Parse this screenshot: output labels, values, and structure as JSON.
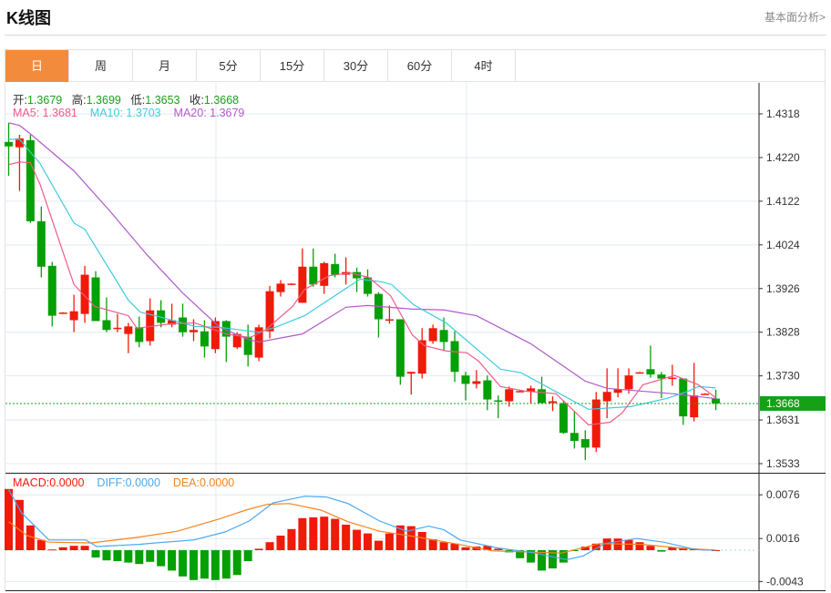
{
  "header": {
    "title": "K线图",
    "link": "基本面分析>"
  },
  "tabs": [
    {
      "label": "日",
      "active": true
    },
    {
      "label": "周"
    },
    {
      "label": "月"
    },
    {
      "label": "5分"
    },
    {
      "label": "15分"
    },
    {
      "label": "30分"
    },
    {
      "label": "60分"
    },
    {
      "label": "4时"
    }
  ],
  "ohlc_info": {
    "open_label": "开:",
    "open": "1.3679",
    "high_label": "高:",
    "high": "1.3699",
    "low_label": "低:",
    "low": "1.3653",
    "close_label": "收:",
    "close": "1.3668"
  },
  "ma_info": {
    "ma5": "MA5: 1.3681",
    "ma10": "MA10: 1.3703",
    "ma20": "MA20: 1.3679"
  },
  "macd_info": {
    "macd": "MACD:0.0000",
    "diff": "DIFF:0.0000",
    "dea": "DEA:0.0000"
  },
  "colors": {
    "up": "#F01A0A",
    "down": "#05A005",
    "ma5": "#EE5C8A",
    "ma10": "#3FCBE0",
    "ma20": "#B25AC9",
    "diff": "#4AA8F0",
    "dea": "#F5841F",
    "active_tab": "#F28C3C",
    "price_line": "#1aa01a"
  },
  "chart_data": {
    "type": "candlestick",
    "price_axis": {
      "ticks": [
        "1.4318",
        "1.4220",
        "1.4122",
        "1.4024",
        "1.3926",
        "1.3828",
        "1.3730",
        "1.3631",
        "1.3533"
      ],
      "range": [
        1.3533,
        1.4318
      ]
    },
    "current_price": "1.3668",
    "candles": [
      [
        1.4255,
        1.4245,
        1.4298,
        1.4179
      ],
      [
        1.4243,
        1.4263,
        1.4271,
        1.4145
      ],
      [
        1.4259,
        1.4077,
        1.4271,
        1.4073
      ],
      [
        1.4077,
        1.3975,
        1.411,
        1.3951
      ],
      [
        1.3977,
        1.3865,
        1.3986,
        1.3841
      ],
      [
        1.3871,
        1.3872,
        1.3873,
        1.387
      ],
      [
        1.3855,
        1.3875,
        1.3912,
        1.3828
      ],
      [
        1.3869,
        1.3957,
        1.3977,
        1.3849
      ],
      [
        1.3951,
        1.3853,
        1.3965,
        1.3853
      ],
      [
        1.3855,
        1.3833,
        1.3906,
        1.3828
      ],
      [
        1.3837,
        1.3838,
        1.3869,
        1.3828
      ],
      [
        1.3824,
        1.3841,
        1.3849,
        1.3781
      ],
      [
        1.3839,
        1.3806,
        1.3863,
        1.3794
      ],
      [
        1.3808,
        1.3877,
        1.3904,
        1.3798
      ],
      [
        1.3877,
        1.3849,
        1.39,
        1.3839
      ],
      [
        1.3845,
        1.3855,
        1.3892,
        1.3839
      ],
      [
        1.3861,
        1.3828,
        1.3892,
        1.3818
      ],
      [
        1.3828,
        1.3833,
        1.3857,
        1.3808
      ],
      [
        1.383,
        1.3796,
        1.3855,
        1.3771
      ],
      [
        1.379,
        1.3853,
        1.3861,
        1.3781
      ],
      [
        1.3853,
        1.3818,
        1.3855,
        1.3761
      ],
      [
        1.3794,
        1.3824,
        1.3828,
        1.379
      ],
      [
        1.3818,
        1.3777,
        1.3845,
        1.3751
      ],
      [
        1.3771,
        1.3839,
        1.3845,
        1.3763
      ],
      [
        1.383,
        1.392,
        1.3932,
        1.3814
      ],
      [
        1.3918,
        1.3937,
        1.3945,
        1.3908
      ],
      [
        1.3936,
        1.3937,
        1.3938,
        1.3936
      ],
      [
        1.3894,
        1.3975,
        1.4016,
        1.3894
      ],
      [
        1.3975,
        1.3935,
        1.4016,
        1.393
      ],
      [
        1.3932,
        1.3983,
        1.3986,
        1.3914
      ],
      [
        1.3981,
        1.3957,
        1.4004,
        1.3951
      ],
      [
        1.3957,
        1.3963,
        1.3996,
        1.3935
      ],
      [
        1.3963,
        1.3949,
        1.3973,
        1.3918
      ],
      [
        1.3951,
        1.3914,
        1.3969,
        1.3908
      ],
      [
        1.3914,
        1.3857,
        1.3918,
        1.3816
      ],
      [
        1.3856,
        1.3857,
        1.3888,
        1.3847
      ],
      [
        1.3857,
        1.3728,
        1.3857,
        1.371
      ],
      [
        1.3735,
        1.3739,
        1.3739,
        1.3688
      ],
      [
        1.3735,
        1.381,
        1.3837,
        1.3724
      ],
      [
        1.3808,
        1.3837,
        1.3845,
        1.3802
      ],
      [
        1.3833,
        1.3806,
        1.3861,
        1.3786
      ],
      [
        1.3808,
        1.3739,
        1.383,
        1.3716
      ],
      [
        1.3731,
        1.3712,
        1.3739,
        1.3675
      ],
      [
        1.3712,
        1.3718,
        1.3743,
        1.3702
      ],
      [
        1.372,
        1.3677,
        1.3731,
        1.3653
      ],
      [
        1.3675,
        1.3673,
        1.3686,
        1.3635
      ],
      [
        1.3673,
        1.37,
        1.3706,
        1.3661
      ],
      [
        1.3695,
        1.3696,
        1.3697,
        1.3694
      ],
      [
        1.3694,
        1.3702,
        1.3708,
        1.3669
      ],
      [
        1.37,
        1.3669,
        1.3728,
        1.3667
      ],
      [
        1.3669,
        1.3673,
        1.3684,
        1.3651
      ],
      [
        1.3669,
        1.3602,
        1.3675,
        1.36
      ],
      [
        1.3602,
        1.3584,
        1.3651,
        1.3567
      ],
      [
        1.3588,
        1.3569,
        1.3608,
        1.3541
      ],
      [
        1.3569,
        1.3677,
        1.3694,
        1.3559
      ],
      [
        1.3673,
        1.3694,
        1.3747,
        1.3635
      ],
      [
        1.3692,
        1.37,
        1.3747,
        1.3682
      ],
      [
        1.37,
        1.3731,
        1.3747,
        1.369
      ],
      [
        1.3737,
        1.3738,
        1.3739,
        1.3736
      ],
      [
        1.3745,
        1.3733,
        1.3798,
        1.3726
      ],
      [
        1.3733,
        1.3724,
        1.3739,
        1.368
      ],
      [
        1.3724,
        1.3726,
        1.3755,
        1.3708
      ],
      [
        1.3724,
        1.3639,
        1.3724,
        1.362
      ],
      [
        1.3637,
        1.3686,
        1.3759,
        1.3628
      ],
      [
        1.3689,
        1.369,
        1.3691,
        1.3688
      ],
      [
        1.3679,
        1.3668,
        1.3699,
        1.3653
      ]
    ],
    "ma5": [
      [
        0,
        1.4204
      ],
      [
        1,
        1.421
      ],
      [
        2,
        1.4208
      ],
      [
        2.9,
        1.4159
      ],
      [
        6,
        1.3935
      ],
      [
        7.9,
        1.3886
      ],
      [
        11,
        1.3865
      ],
      [
        11.8,
        1.3837
      ],
      [
        15,
        1.3847
      ],
      [
        17.1,
        1.3849
      ],
      [
        20,
        1.3824
      ],
      [
        22.2,
        1.3816
      ],
      [
        23.6,
        1.3833
      ],
      [
        26.1,
        1.3886
      ],
      [
        27.2,
        1.3924
      ],
      [
        29.5,
        1.3955
      ],
      [
        31.4,
        1.3961
      ],
      [
        33.1,
        1.3951
      ],
      [
        35.1,
        1.391
      ],
      [
        37.1,
        1.3822
      ],
      [
        38.2,
        1.3798
      ],
      [
        40.2,
        1.3786
      ],
      [
        42.1,
        1.3782
      ],
      [
        43.2,
        1.3763
      ],
      [
        45.2,
        1.3706
      ],
      [
        47.4,
        1.3696
      ],
      [
        50.3,
        1.369
      ],
      [
        53.3,
        1.362
      ],
      [
        55.3,
        1.3626
      ],
      [
        56.4,
        1.3647
      ],
      [
        58.3,
        1.371
      ],
      [
        61.2,
        1.3731
      ],
      [
        63.4,
        1.371
      ],
      [
        65,
        1.3681
      ]
    ],
    "ma10": [
      [
        0,
        1.4261
      ],
      [
        1,
        1.4261
      ],
      [
        2.9,
        1.4206
      ],
      [
        6,
        1.4073
      ],
      [
        7,
        1.4059
      ],
      [
        11,
        1.39
      ],
      [
        12.1,
        1.3873
      ],
      [
        13.8,
        1.3863
      ],
      [
        17.1,
        1.3841
      ],
      [
        19.4,
        1.3839
      ],
      [
        23,
        1.3828
      ],
      [
        24.5,
        1.3839
      ],
      [
        27.2,
        1.3865
      ],
      [
        32.3,
        1.3947
      ],
      [
        34.3,
        1.3941
      ],
      [
        35.2,
        1.3935
      ],
      [
        37.2,
        1.389
      ],
      [
        40.2,
        1.3849
      ],
      [
        45.2,
        1.3745
      ],
      [
        47.1,
        1.3737
      ],
      [
        53.3,
        1.3655
      ],
      [
        57.2,
        1.3661
      ],
      [
        60.6,
        1.368
      ],
      [
        62.5,
        1.3696
      ],
      [
        63.4,
        1.3706
      ],
      [
        65,
        1.3703
      ]
    ],
    "ma20": [
      [
        0,
        1.4298
      ],
      [
        1,
        1.4292
      ],
      [
        2,
        1.4273
      ],
      [
        6,
        1.419
      ],
      [
        9.3,
        1.41
      ],
      [
        12.7,
        1.4002
      ],
      [
        16,
        1.3916
      ],
      [
        19.4,
        1.3839
      ],
      [
        22,
        1.3812
      ],
      [
        23,
        1.3806
      ],
      [
        27,
        1.3824
      ],
      [
        31,
        1.3884
      ],
      [
        33,
        1.3888
      ],
      [
        37,
        1.388
      ],
      [
        40,
        1.3878
      ],
      [
        43,
        1.3865
      ],
      [
        48,
        1.3802
      ],
      [
        53,
        1.3718
      ],
      [
        55,
        1.3702
      ],
      [
        61,
        1.369
      ],
      [
        65,
        1.3679
      ]
    ],
    "macd": {
      "ticks": [
        "0.0076",
        "0.0016",
        "-0.0043"
      ],
      "histogram": [
        0.0084,
        0.0069,
        0.0034,
        0.0014,
        0.0001,
        0.0004,
        0.0006,
        0.0006,
        -0.001,
        -0.0014,
        -0.0015,
        -0.0017,
        -0.0019,
        -0.0016,
        -0.0022,
        -0.0028,
        -0.0036,
        -0.0041,
        -0.0039,
        -0.0041,
        -0.0039,
        -0.0034,
        -0.0015,
        0.0002,
        0.0011,
        0.002,
        0.0029,
        0.0044,
        0.0045,
        0.0046,
        0.0043,
        0.0035,
        0.0028,
        0.0023,
        0.0013,
        0.0023,
        0.0034,
        0.0033,
        0.0025,
        0.0015,
        0.0011,
        0.0009,
        0.0004,
        0.0005,
        0.0006,
        0.0002,
        -0.0003,
        -0.0011,
        -0.0017,
        -0.0028,
        -0.0025,
        -0.0017,
        -0.0001,
        0.0005,
        0.0009,
        0.0016,
        0.0016,
        0.0014,
        0.0011,
        0.0006,
        -0.0002,
        0.0004,
        0.0003,
        0.0002,
        0.0001,
        0.0
      ],
      "diff": [
        [
          0,
          0.0083
        ],
        [
          1.2,
          0.0051
        ],
        [
          3.7,
          0.0014
        ],
        [
          7.1,
          0.0014
        ],
        [
          8.1,
          0.0005
        ],
        [
          12,
          0.0008
        ],
        [
          13.5,
          0.001
        ],
        [
          17,
          0.0014
        ],
        [
          19.9,
          0.0025
        ],
        [
          22.1,
          0.004
        ],
        [
          24.3,
          0.0065
        ],
        [
          27.2,
          0.0074
        ],
        [
          29.2,
          0.0073
        ],
        [
          31.2,
          0.0064
        ],
        [
          34.1,
          0.004
        ],
        [
          36.6,
          0.0026
        ],
        [
          38.6,
          0.0033
        ],
        [
          40,
          0.0028
        ],
        [
          41.5,
          0.0014
        ],
        [
          45,
          0.0003
        ],
        [
          48.4,
          -0.0004
        ],
        [
          51.3,
          -0.0013
        ],
        [
          52.8,
          -0.0008
        ],
        [
          54.8,
          0.0009
        ],
        [
          57.7,
          0.0016
        ],
        [
          60.2,
          0.0011
        ],
        [
          63.1,
          0.0001
        ],
        [
          65,
          0.0
        ]
      ],
      "dea": [
        [
          0,
          0.0039
        ],
        [
          1.7,
          0.002
        ],
        [
          3.7,
          0.0011
        ],
        [
          7.6,
          0.001
        ],
        [
          12,
          0.0018
        ],
        [
          15.5,
          0.0026
        ],
        [
          19.4,
          0.0043
        ],
        [
          21.8,
          0.0055
        ],
        [
          23.8,
          0.0063
        ],
        [
          25.8,
          0.0064
        ],
        [
          28.7,
          0.0055
        ],
        [
          31.2,
          0.0039
        ],
        [
          34.1,
          0.0026
        ],
        [
          37.6,
          0.0018
        ],
        [
          41,
          0.0009
        ],
        [
          44.5,
          -0.0001
        ],
        [
          50.8,
          -0.0004
        ],
        [
          54.3,
          0.0009
        ],
        [
          58.2,
          0.0008
        ],
        [
          61.7,
          0.0003
        ],
        [
          65,
          0.0
        ]
      ]
    }
  }
}
